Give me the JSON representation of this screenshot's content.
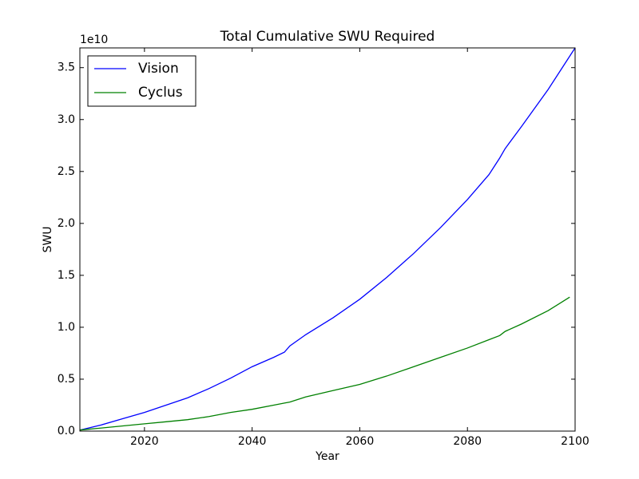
{
  "chart_data": {
    "type": "line",
    "title": "Total Cumulative SWU Required",
    "x_label": "Year",
    "y_label": "SWU",
    "y_offset_label": "1e10",
    "x": [
      2008,
      2012,
      2016,
      2020,
      2024,
      2028,
      2032,
      2036,
      2040,
      2044,
      2046,
      2047,
      2050,
      2055,
      2060,
      2065,
      2070,
      2075,
      2080,
      2084,
      2086,
      2087,
      2090,
      2095,
      2099,
      2100
    ],
    "series": [
      {
        "name": "Vision",
        "color": "#0000ff",
        "values": [
          0.01,
          0.06,
          0.12,
          0.18,
          0.25,
          0.32,
          0.41,
          0.51,
          0.62,
          0.71,
          0.76,
          0.82,
          0.93,
          1.09,
          1.27,
          1.48,
          1.71,
          1.96,
          2.23,
          2.47,
          2.63,
          2.72,
          2.93,
          3.29,
          3.61,
          3.69
        ]
      },
      {
        "name": "Cyclus",
        "color": "#008000",
        "values": [
          0.01,
          0.03,
          0.05,
          0.07,
          0.09,
          0.11,
          0.14,
          0.18,
          0.21,
          0.25,
          0.27,
          0.28,
          0.33,
          0.39,
          0.45,
          0.53,
          0.62,
          0.71,
          0.8,
          0.88,
          0.92,
          0.96,
          1.03,
          1.16,
          1.29,
          null
        ]
      }
    ],
    "xlim": [
      2008,
      2100
    ],
    "xticks": [
      2020,
      2040,
      2060,
      2080,
      2100
    ],
    "ylim": [
      0,
      3.69
    ],
    "yticks": [
      {
        "value": 0,
        "label": "0.0"
      },
      0.5,
      {
        "value": 1,
        "label": "1.0"
      },
      1.5,
      {
        "value": 2,
        "label": "2.0"
      },
      2.5,
      {
        "value": 3,
        "label": "3.0"
      },
      3.5
    ],
    "legend": "upper-left"
  }
}
